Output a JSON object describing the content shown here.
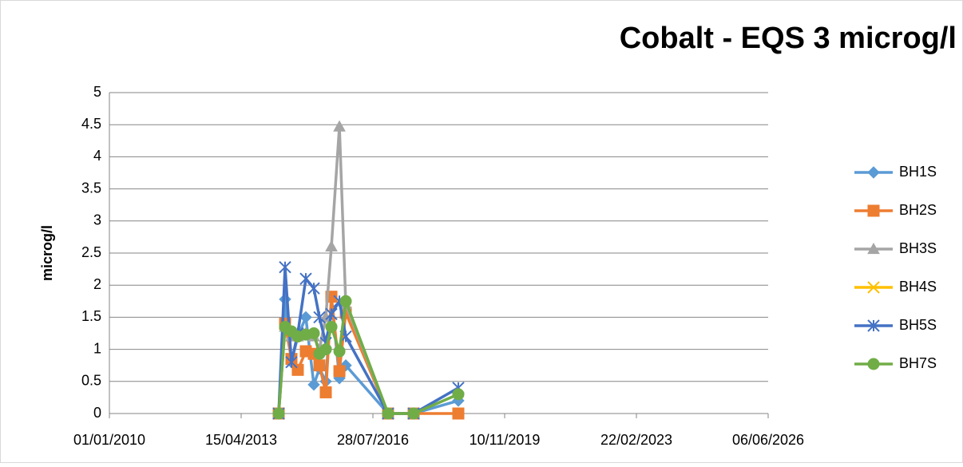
{
  "chart_data": {
    "type": "line",
    "title": "Cobalt - EQS 3 microg/l",
    "y_label": "microg/l",
    "x": [
      "23/03/2014",
      "20/05/2014",
      "17/07/2014",
      "13/09/2014",
      "25/11/2014",
      "06/02/2015",
      "29/03/2015",
      "26/05/2015",
      "16/07/2015",
      "27/09/2015",
      "24/11/2015",
      "13/12/2016",
      "03/08/2017",
      "14/09/2018"
    ],
    "series": [
      {
        "name": "BH1S",
        "color": "#5b9bd5",
        "marker": "diamond",
        "values": [
          0,
          1.78,
          0.8,
          1.2,
          1.5,
          0.45,
          0.7,
          0.5,
          1.8,
          0.55,
          0.75,
          0,
          0,
          0.2
        ]
      },
      {
        "name": "BH2S",
        "color": "#ed7d31",
        "marker": "square",
        "values": [
          0,
          1.4,
          0.85,
          0.68,
          0.97,
          0.93,
          0.75,
          0.33,
          1.82,
          0.66,
          1.57,
          0,
          0,
          0
        ]
      },
      {
        "name": "BH3S",
        "color": "#a5a5a5",
        "marker": "triangle",
        "values": [
          0,
          1.35,
          1.2,
          1.2,
          1.25,
          1.2,
          1.0,
          1.5,
          2.6,
          4.47,
          1.7,
          0,
          0,
          null
        ]
      },
      {
        "name": "BH4S",
        "color": "#ffc000",
        "marker": "x",
        "values": [
          0,
          null,
          null,
          null,
          null,
          null,
          null,
          null,
          null,
          null,
          null,
          0,
          0,
          null
        ]
      },
      {
        "name": "BH5S",
        "color": "#4472c4",
        "marker": "star",
        "values": [
          0,
          2.28,
          0.8,
          1.25,
          2.1,
          1.95,
          1.5,
          1.1,
          1.55,
          1.75,
          1.2,
          0,
          0,
          0.4
        ]
      },
      {
        "name": "BH7S",
        "color": "#70ad47",
        "marker": "circle",
        "values": [
          0,
          1.35,
          1.28,
          1.2,
          1.23,
          1.25,
          0.93,
          1.0,
          1.35,
          0.97,
          1.75,
          0,
          0,
          0.3
        ]
      }
    ],
    "xlim": [
      "01/01/2010",
      "06/06/2026"
    ],
    "xticks": [
      "01/01/2010",
      "15/04/2013",
      "28/07/2016",
      "10/11/2019",
      "22/02/2023",
      "06/06/2026"
    ],
    "ylim": [
      0,
      5
    ],
    "yticks": [
      0,
      0.5,
      1,
      1.5,
      2,
      2.5,
      3,
      3.5,
      4,
      4.5,
      5
    ],
    "grid": true,
    "legend": "right"
  }
}
